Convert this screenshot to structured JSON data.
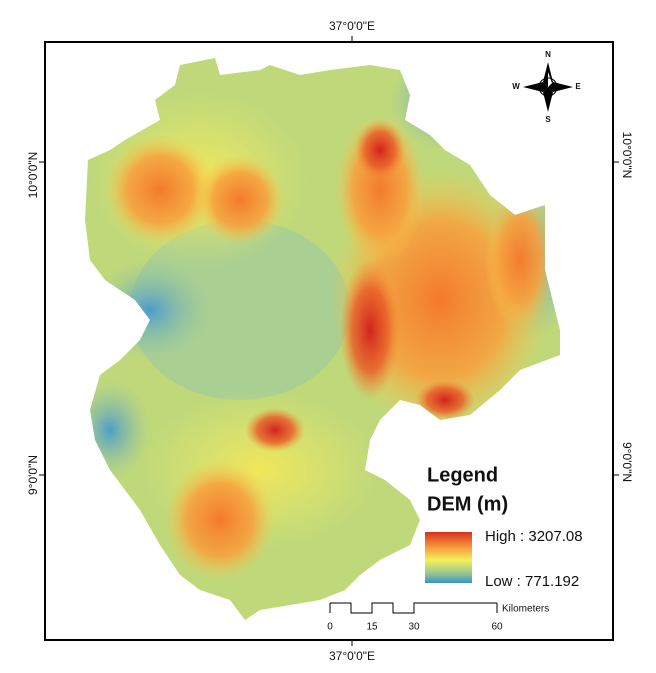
{
  "map": {
    "coordinates": {
      "top": "37°0'0\"E",
      "bottom": "37°0'0\"E",
      "left_upper": "10°0'0\"N",
      "left_lower": "9°0'0\"N",
      "right_upper": "10°0'0\"N",
      "right_lower": "9°0'0\"N"
    },
    "compass": {
      "north": "N",
      "south": "S",
      "east": "E",
      "west": "W"
    },
    "legend": {
      "title": "Legend",
      "subtitle": "DEM (m)",
      "high": "High : 3207.08",
      "low": "Low : 771.192"
    },
    "scale_bar": {
      "labels": [
        "0",
        "15",
        "30",
        "60"
      ],
      "unit": "Kilometers"
    }
  }
}
